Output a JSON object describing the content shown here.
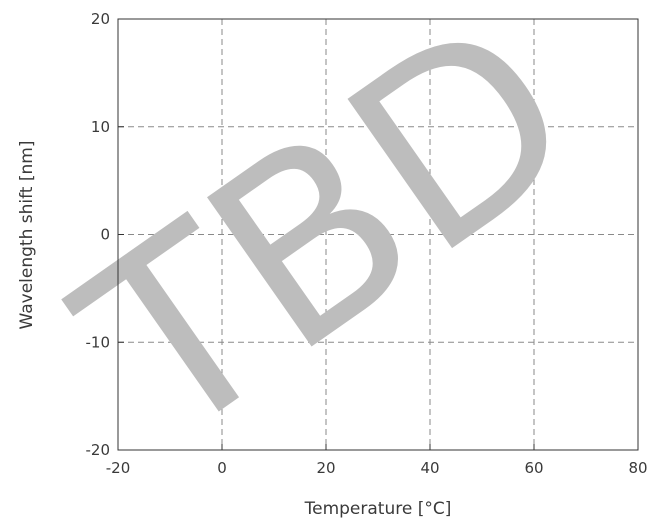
{
  "chart_data": {
    "type": "line",
    "title": "",
    "xlabel": "Temperature [°C]",
    "ylabel": "Wavelength shift [nm]",
    "xlim": [
      -20,
      80
    ],
    "ylim": [
      -20,
      20
    ],
    "x_ticks": [
      -20,
      0,
      20,
      40,
      60,
      80
    ],
    "y_ticks": [
      -20,
      -10,
      0,
      10,
      20
    ],
    "grid": true,
    "grid_style": "dashed",
    "grid_color": "#8a8a8a",
    "series": [],
    "watermark": "TBD",
    "watermark_color": "#bdbdbd"
  }
}
